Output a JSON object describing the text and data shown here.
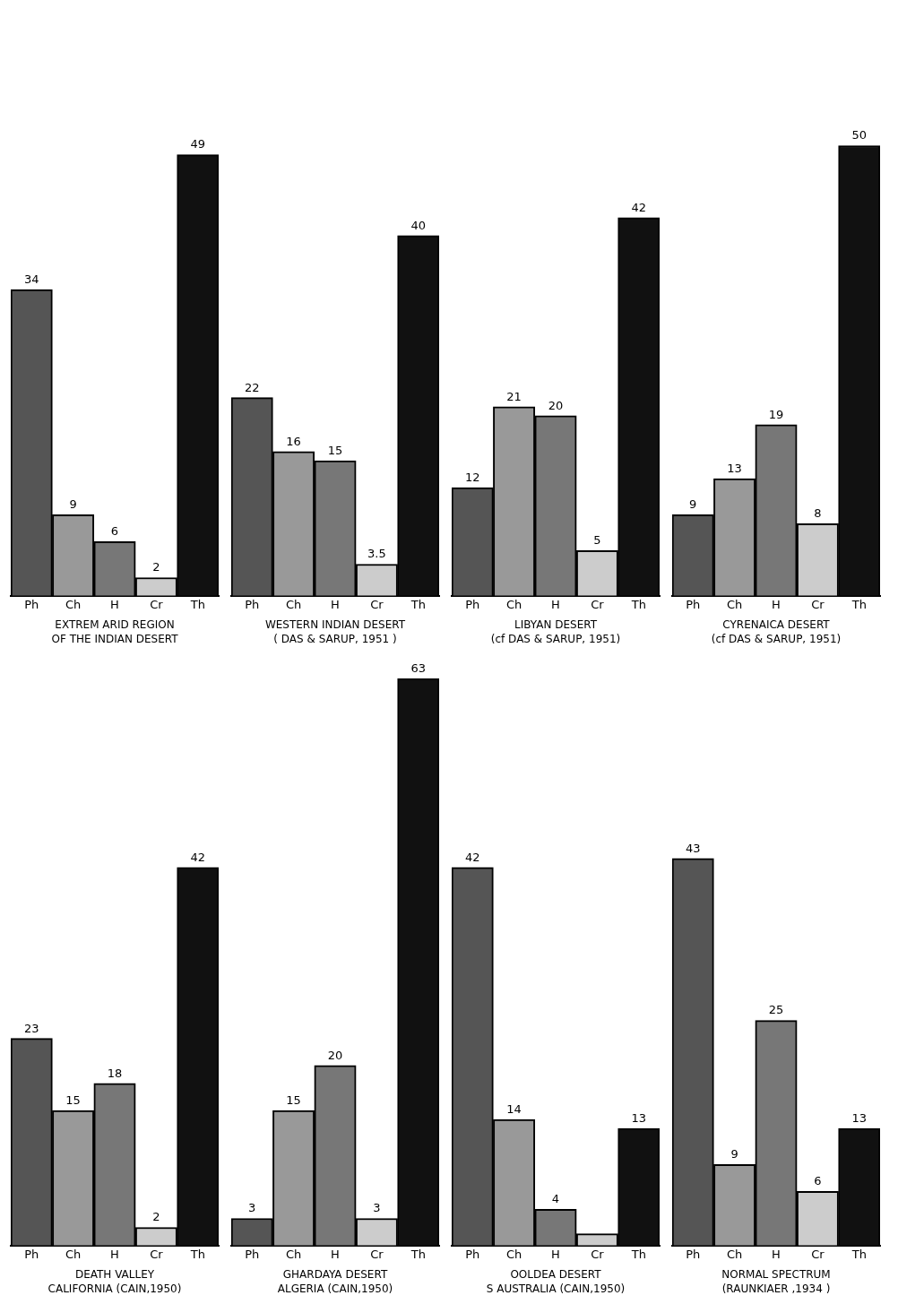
{
  "chart_data": [
    {
      "type": "bar",
      "title": "EXTREM ARID REGION",
      "subtitle": "OF THE INDIAN DESERT",
      "categories": [
        "Ph",
        "Ch",
        "H",
        "Cr",
        "Th"
      ],
      "values": [
        34,
        9,
        6,
        2,
        49
      ],
      "colors": [
        "#555555",
        "#999999",
        "#777777",
        "#cccccc",
        "#111111"
      ],
      "data_labels": true
    },
    {
      "type": "bar",
      "title": "WESTERN INDIAN DESERT",
      "subtitle": "( DAS & SARUP, 1951 )",
      "categories": [
        "Ph",
        "Ch",
        "H",
        "Cr",
        "Th"
      ],
      "values": [
        22,
        16,
        15,
        3.5,
        40
      ],
      "colors": [
        "#555555",
        "#999999",
        "#777777",
        "#cccccc",
        "#111111"
      ],
      "data_labels": true
    },
    {
      "type": "bar",
      "title": "LIBYAN DESERT",
      "subtitle": "(cf DAS & SARUP, 1951)",
      "categories": [
        "Ph",
        "Ch",
        "H",
        "Cr",
        "Th"
      ],
      "values": [
        12,
        21,
        20,
        5,
        42
      ],
      "colors": [
        "#555555",
        "#999999",
        "#777777",
        "#cccccc",
        "#111111"
      ],
      "data_labels": true
    },
    {
      "type": "bar",
      "title": "CYRENAICA DESERT",
      "subtitle": "(cf DAS & SARUP, 1951)",
      "categories": [
        "Ph",
        "Ch",
        "H",
        "Cr",
        "Th"
      ],
      "values": [
        9,
        13,
        19,
        8,
        50
      ],
      "colors": [
        "#555555",
        "#999999",
        "#777777",
        "#cccccc",
        "#111111"
      ],
      "data_labels": true
    },
    {
      "type": "bar",
      "title": "DEATH VALLEY",
      "subtitle": "CALIFORNIA (CAIN,1950)",
      "categories": [
        "Ph",
        "Ch",
        "H",
        "Cr",
        "Th"
      ],
      "values": [
        23,
        15,
        18,
        2,
        42
      ],
      "colors": [
        "#555555",
        "#999999",
        "#777777",
        "#cccccc",
        "#111111"
      ],
      "data_labels": true
    },
    {
      "type": "bar",
      "title": "GHARDAYA DESERT",
      "subtitle": "ALGERIA (CAIN,1950)",
      "categories": [
        "Ph",
        "Ch",
        "H",
        "Cr",
        "Th"
      ],
      "values": [
        3,
        15,
        20,
        3,
        63
      ],
      "colors": [
        "#555555",
        "#999999",
        "#777777",
        "#cccccc",
        "#111111"
      ],
      "data_labels": true
    },
    {
      "type": "bar",
      "title": "OOLDEA DESERT",
      "subtitle": "S AUSTRALIA (CAIN,1950)",
      "categories": [
        "Ph",
        "Ch",
        "H",
        "Cr",
        "Th"
      ],
      "values": [
        42,
        14,
        4,
        1.3,
        13
      ],
      "value_labels": [
        "42",
        "14",
        "4",
        null,
        "13"
      ],
      "colors": [
        "#555555",
        "#999999",
        "#777777",
        "#cccccc",
        "#111111"
      ]
    },
    {
      "type": "bar",
      "title": "NORMAL SPECTRUM",
      "subtitle": "(RAUNKIAER ,1934 )",
      "categories": [
        "Ph",
        "Ch",
        "H",
        "Cr",
        "Th"
      ],
      "values": [
        43,
        9,
        25,
        6,
        13
      ],
      "colors": [
        "#555555",
        "#999999",
        "#777777",
        "#cccccc",
        "#111111"
      ],
      "data_labels": true
    }
  ]
}
